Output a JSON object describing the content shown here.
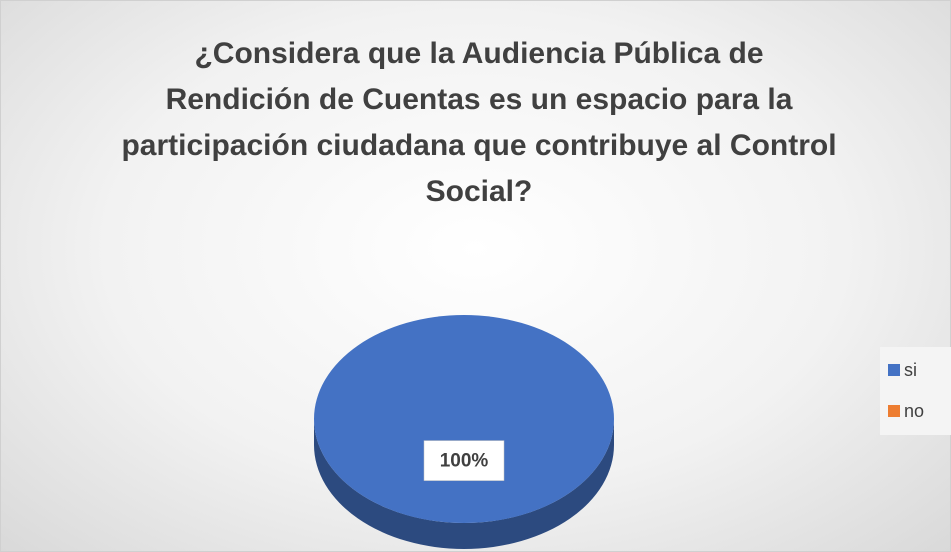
{
  "chart_data": {
    "type": "pie",
    "title": "¿Considera que la Audiencia Pública de Rendición de Cuentas es un espacio para la participación ciudadana que contribuye al Control Social?",
    "categories": [
      "si",
      "no"
    ],
    "values": [
      100,
      0
    ],
    "value_labels": [
      "100%",
      null
    ],
    "colors": [
      "#4472c4",
      "#ed7d31"
    ],
    "legend": "right"
  }
}
